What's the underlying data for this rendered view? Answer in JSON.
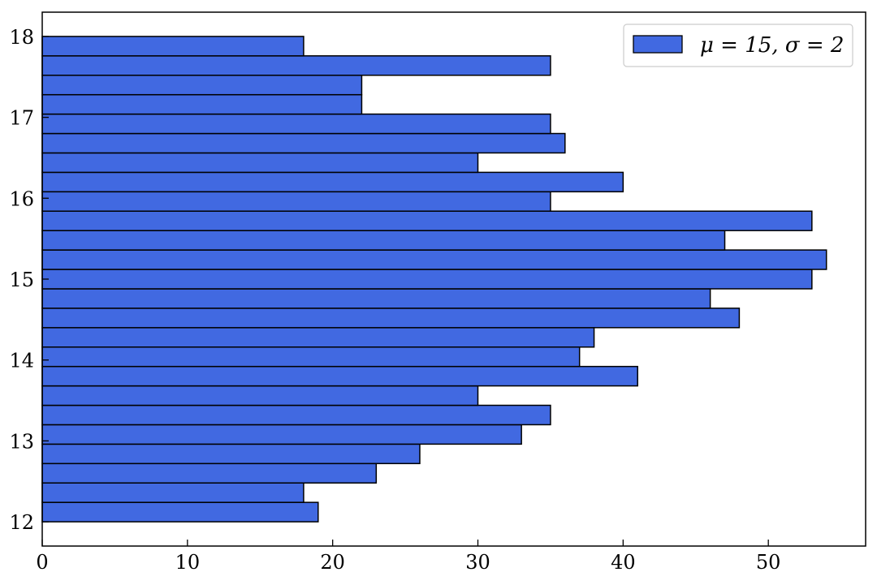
{
  "chart_data": {
    "type": "bar",
    "orientation": "horizontal",
    "bins": [
      {
        "y0": 12.0,
        "y1": 12.24,
        "count": 19
      },
      {
        "y0": 12.24,
        "y1": 12.48,
        "count": 18
      },
      {
        "y0": 12.48,
        "y1": 12.72,
        "count": 23
      },
      {
        "y0": 12.72,
        "y1": 12.96,
        "count": 26
      },
      {
        "y0": 12.96,
        "y1": 13.2,
        "count": 33
      },
      {
        "y0": 13.2,
        "y1": 13.44,
        "count": 35
      },
      {
        "y0": 13.44,
        "y1": 13.68,
        "count": 30
      },
      {
        "y0": 13.68,
        "y1": 13.92,
        "count": 41
      },
      {
        "y0": 13.92,
        "y1": 14.16,
        "count": 37
      },
      {
        "y0": 14.16,
        "y1": 14.4,
        "count": 38
      },
      {
        "y0": 14.4,
        "y1": 14.64,
        "count": 48
      },
      {
        "y0": 14.64,
        "y1": 14.88,
        "count": 46
      },
      {
        "y0": 14.88,
        "y1": 15.12,
        "count": 53
      },
      {
        "y0": 15.12,
        "y1": 15.36,
        "count": 54
      },
      {
        "y0": 15.36,
        "y1": 15.6,
        "count": 47
      },
      {
        "y0": 15.6,
        "y1": 15.84,
        "count": 53
      },
      {
        "y0": 15.84,
        "y1": 16.08,
        "count": 35
      },
      {
        "y0": 16.08,
        "y1": 16.32,
        "count": 40
      },
      {
        "y0": 16.32,
        "y1": 16.56,
        "count": 30
      },
      {
        "y0": 16.56,
        "y1": 16.8,
        "count": 36
      },
      {
        "y0": 16.8,
        "y1": 17.04,
        "count": 35
      },
      {
        "y0": 17.04,
        "y1": 17.28,
        "count": 22
      },
      {
        "y0": 17.28,
        "y1": 17.52,
        "count": 22
      },
      {
        "y0": 17.52,
        "y1": 17.76,
        "count": 35
      },
      {
        "y0": 17.76,
        "y1": 18.0,
        "count": 18
      }
    ],
    "xlim": [
      0,
      56.7
    ],
    "ylim": [
      11.7,
      18.3
    ],
    "x_ticks": [
      0,
      10,
      20,
      30,
      40,
      50
    ],
    "y_ticks": [
      12,
      13,
      14,
      15,
      16,
      17,
      18
    ],
    "legend": {
      "label": "μ = 15, σ = 2",
      "position": "top-right"
    },
    "grid": false,
    "bar_color": "#4169e1",
    "edge_color": "#000000"
  }
}
